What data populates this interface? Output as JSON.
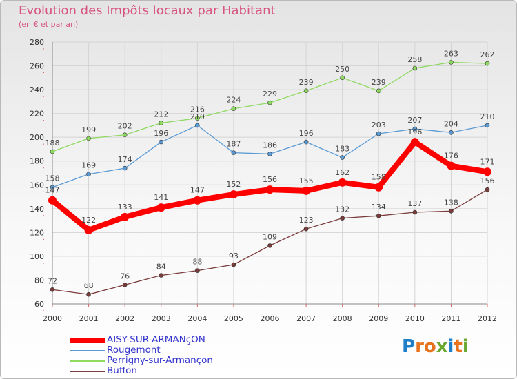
{
  "title": "Evolution des Impôts locaux par Habitant",
  "subtitle": "(en € et par an)",
  "logo": "Proxiti",
  "colors": {
    "title": "#d6547f",
    "legend_text": "#3333cc",
    "grid": "#d4d4d4",
    "axis_text": "#333333"
  },
  "chart_data": {
    "type": "line",
    "title": "Evolution des Impôts locaux par Habitant",
    "subtitle": "(en € et par an)",
    "xlabel": "",
    "ylabel": "",
    "categories": [
      "2000",
      "2001",
      "2002",
      "2003",
      "2004",
      "2005",
      "2006",
      "2007",
      "2008",
      "2009",
      "2010",
      "2011",
      "2012"
    ],
    "ylim": [
      60,
      280
    ],
    "yticks": [
      60,
      80,
      100,
      120,
      140,
      160,
      180,
      200,
      220,
      240,
      260,
      280
    ],
    "grid": true,
    "legend_position": "bottom-left",
    "series": [
      {
        "name": "AISY-SUR-ARMANçON",
        "color": "#ff0000",
        "highlight": true,
        "values": [
          147,
          122,
          133,
          141,
          147,
          152,
          156,
          155,
          162,
          158,
          196,
          176,
          171
        ]
      },
      {
        "name": "Rougemont",
        "color": "#5b9bd5",
        "values": [
          158,
          169,
          174,
          196,
          210,
          187,
          186,
          196,
          183,
          203,
          207,
          204,
          210
        ]
      },
      {
        "name": "Perrigny-sur-Armançon",
        "color": "#8ed95f",
        "values": [
          188,
          199,
          202,
          212,
          216,
          224,
          229,
          239,
          250,
          239,
          258,
          263,
          262
        ]
      },
      {
        "name": "Buffon",
        "color": "#7a3b3b",
        "values": [
          72,
          68,
          76,
          84,
          88,
          93,
          109,
          123,
          132,
          134,
          137,
          138,
          156
        ]
      }
    ]
  }
}
